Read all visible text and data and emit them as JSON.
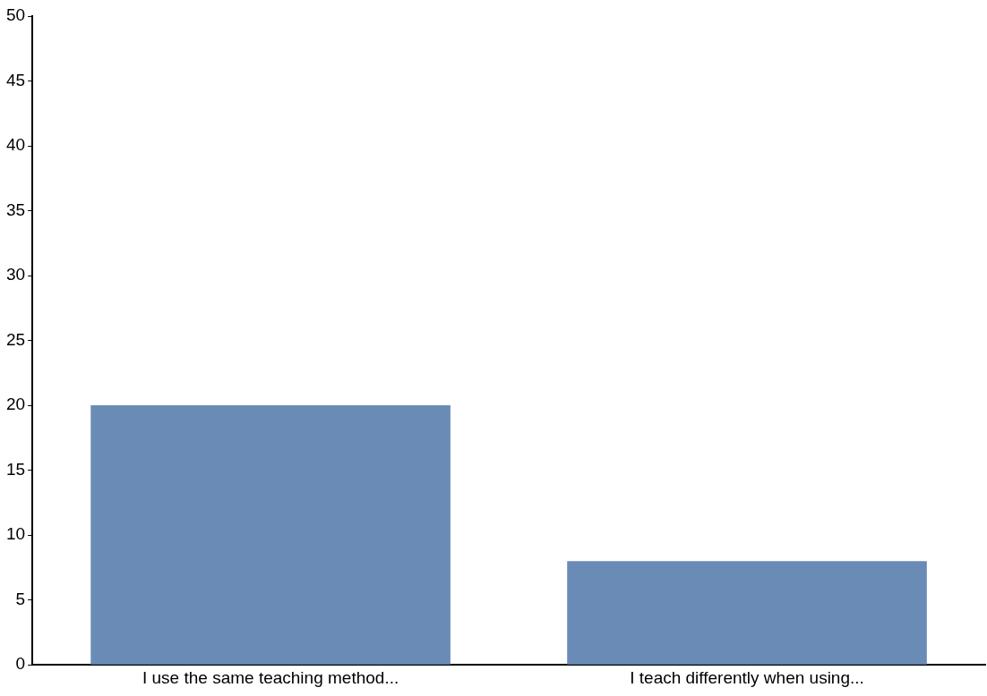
{
  "chart_data": {
    "type": "bar",
    "categories": [
      "I use the same teaching method...",
      "I teach differently when using..."
    ],
    "values": [
      20,
      8
    ],
    "color": "#6a8bb5",
    "ylim": [
      0,
      50
    ],
    "yticks": [
      0,
      5,
      10,
      15,
      20,
      25,
      30,
      35,
      40,
      45,
      50
    ],
    "grid": false,
    "legend": false
  }
}
